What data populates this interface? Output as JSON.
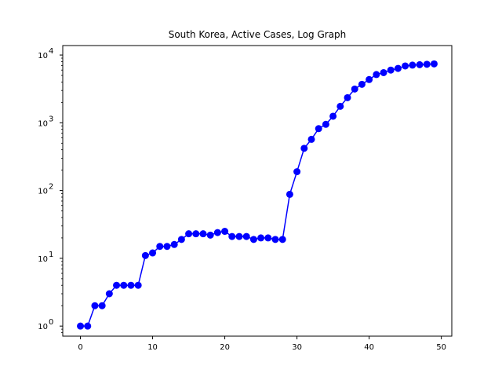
{
  "chart_data": {
    "type": "line",
    "title": "South Korea, Active Cases, Log Graph",
    "xlabel": "",
    "ylabel": "",
    "y_scale": "log",
    "xlim": [
      -2.45,
      51.45
    ],
    "ylim": [
      0.71,
      13800
    ],
    "x_ticks": [
      0,
      10,
      20,
      30,
      40,
      50
    ],
    "y_ticks": [
      1,
      10,
      100,
      1000,
      10000
    ],
    "y_tick_labels": [
      {
        "base": "10",
        "exp": "0"
      },
      {
        "base": "10",
        "exp": "1"
      },
      {
        "base": "10",
        "exp": "2"
      },
      {
        "base": "10",
        "exp": "3"
      },
      {
        "base": "10",
        "exp": "4"
      }
    ],
    "grid": false,
    "series": [
      {
        "color": "#0000ff",
        "marker": "circle",
        "x": [
          0,
          1,
          2,
          3,
          4,
          5,
          6,
          7,
          8,
          9,
          10,
          11,
          12,
          13,
          14,
          15,
          16,
          17,
          18,
          19,
          20,
          21,
          22,
          23,
          24,
          25,
          26,
          27,
          28,
          29,
          30,
          31,
          32,
          33,
          34,
          35,
          36,
          37,
          38,
          39,
          40,
          41,
          42,
          43,
          44,
          45,
          46,
          47,
          48,
          49
        ],
        "values": [
          1,
          1,
          2,
          2,
          3,
          4,
          4,
          4,
          4,
          11,
          12,
          15,
          15,
          16,
          19,
          23,
          23,
          23,
          22,
          24,
          25,
          21,
          21,
          21,
          19,
          20,
          20,
          19,
          19,
          88,
          190,
          420,
          570,
          820,
          950,
          1250,
          1750,
          2350,
          3150,
          3700,
          4350,
          5150,
          5500,
          6000,
          6350,
          6900,
          7100,
          7200,
          7300,
          7400
        ]
      }
    ]
  }
}
